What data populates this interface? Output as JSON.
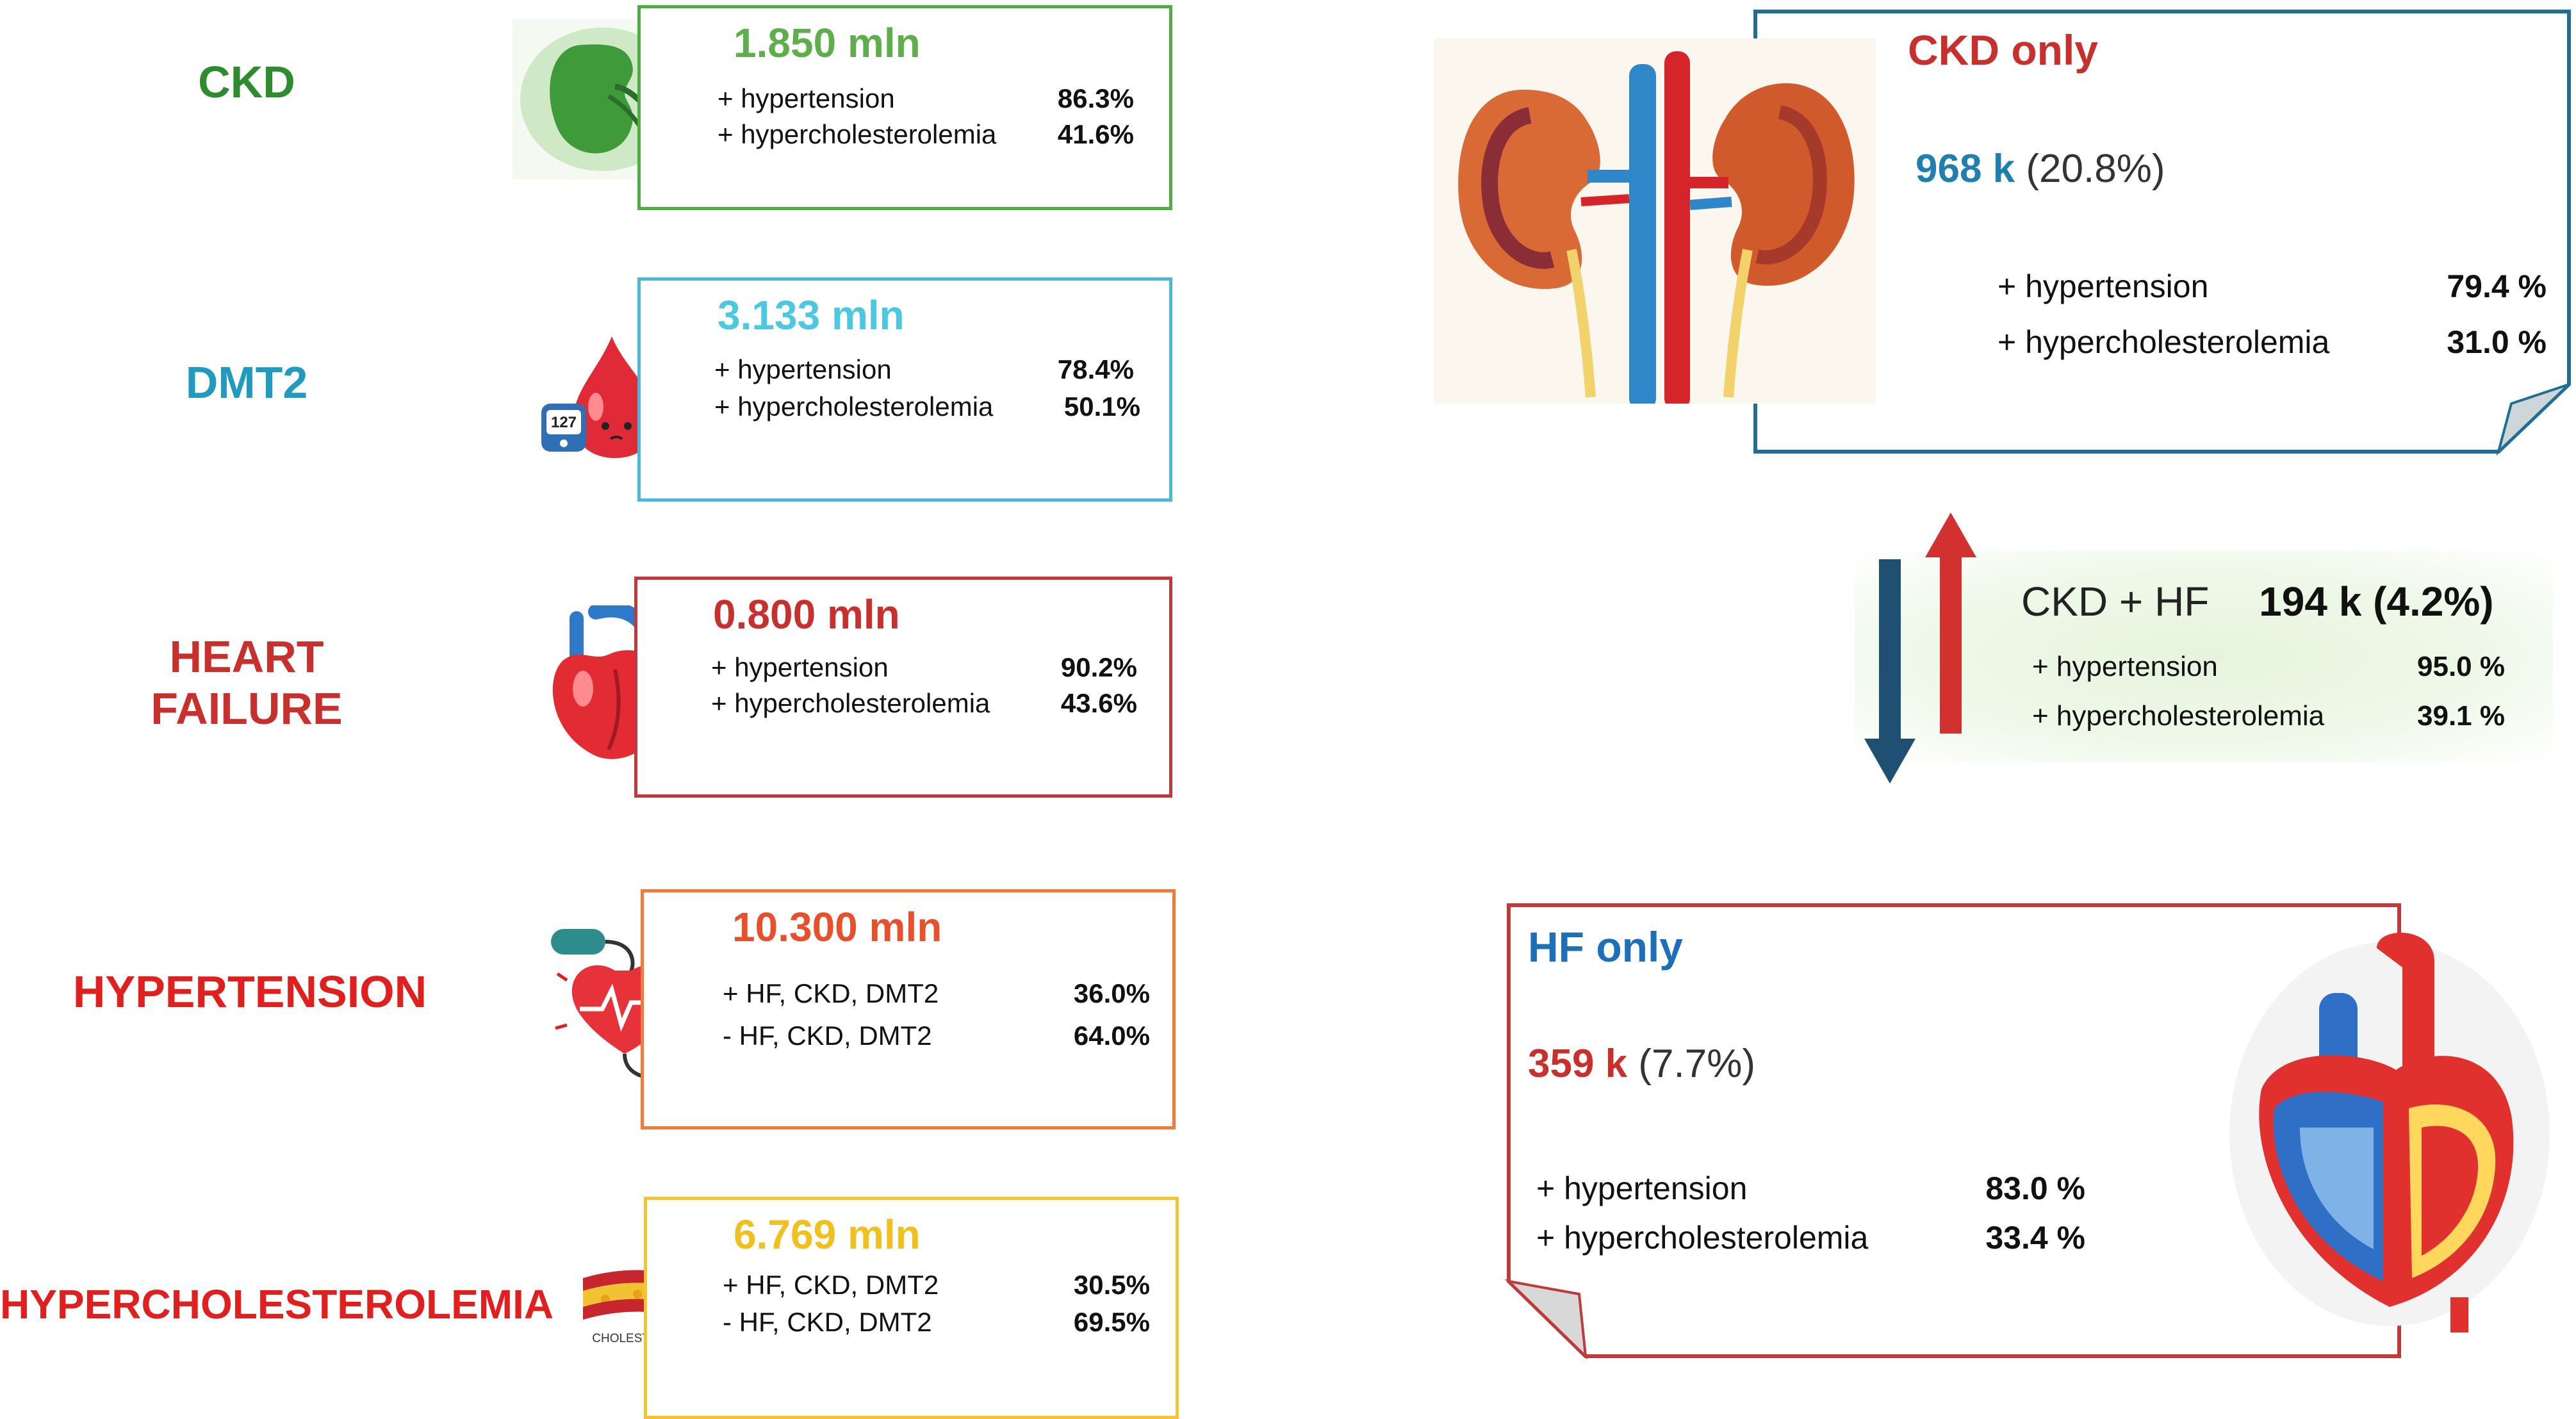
{
  "conditions": [
    {
      "name": "CKD",
      "total": "1.850 mln",
      "color": "#2e8b2e",
      "total_color": "#5fae4b",
      "border": "#4caf3f",
      "rows": [
        {
          "label": "+ hypertension",
          "pct": "86.3%"
        },
        {
          "label": "+ hypercholesterolemia",
          "pct": "41.6%"
        }
      ]
    },
    {
      "name": "DMT2",
      "total": "3.133 mln",
      "color": "#1f9bbf",
      "total_color": "#4dc8e3",
      "border": "#49b8dc",
      "rows": [
        {
          "label": "+ hypertension",
          "pct": "78.4%"
        },
        {
          "label": "+ hypercholesterolemia",
          "pct": "50.1%"
        }
      ]
    },
    {
      "name_line1": "HEART",
      "name_line2": "FAILURE",
      "total": "0.800 mln",
      "color": "#c8302e",
      "total_color": "#c8302e",
      "border": "#c0393b",
      "rows": [
        {
          "label": "+ hypertension",
          "pct": "90.2%"
        },
        {
          "label": "+ hypercholesterolemia",
          "pct": "43.6%"
        }
      ]
    },
    {
      "name": "HYPERTENSION",
      "total": "10.300 mln",
      "color": "#e0201f",
      "total_color": "#e8502c",
      "border": "#f07a3c",
      "rows": [
        {
          "label": "+ HF, CKD, DMT2",
          "pct": "36.0%"
        },
        {
          "label": "- HF, CKD, DMT2",
          "pct": "64.0%"
        }
      ]
    },
    {
      "name": "HYPERCHOLESTEROLEMIA",
      "total": "6.769 mln",
      "color": "#e0201f",
      "total_color": "#f2c01e",
      "border": "#f4c431",
      "rows": [
        {
          "label": "+ HF, CKD, DMT2",
          "pct": "30.5%"
        },
        {
          "label": "- HF, CKD, DMT2",
          "pct": "69.5%"
        }
      ],
      "icon_caption": "CHOLESTEROL"
    }
  ],
  "ckd_only": {
    "title": "CKD only",
    "count": "968 k",
    "share": "(20.8%)",
    "title_color": "#c8302e",
    "count_color": "#1f7fb0",
    "rows": [
      {
        "label": "+ hypertension",
        "pct": "79.4 %"
      },
      {
        "label": "+ hypercholesterolemia",
        "pct": "31.0 %"
      }
    ]
  },
  "ckd_hf": {
    "label": "CKD + HF",
    "value": "194 k (4.2%)",
    "rows": [
      {
        "label": "+ hypertension",
        "pct": "95.0 %"
      },
      {
        "label": "+ hypercholesterolemia",
        "pct": "39.1 %"
      }
    ]
  },
  "hf_only": {
    "title": "HF only",
    "count": "359 k",
    "share": "(7.7%)",
    "title_color": "#1f6fb8",
    "count_color": "#c8302e",
    "rows": [
      {
        "label": "+ hypertension",
        "pct": "83.0 %"
      },
      {
        "label": "+ hypercholesterolemia",
        "pct": "33.4 %"
      }
    ]
  },
  "icons": [
    "kidney-icon",
    "blood-drop-icon",
    "heart-icon",
    "blood-pressure-icon",
    "artery-icon",
    "kidneys-illustration",
    "heart-illustration"
  ]
}
